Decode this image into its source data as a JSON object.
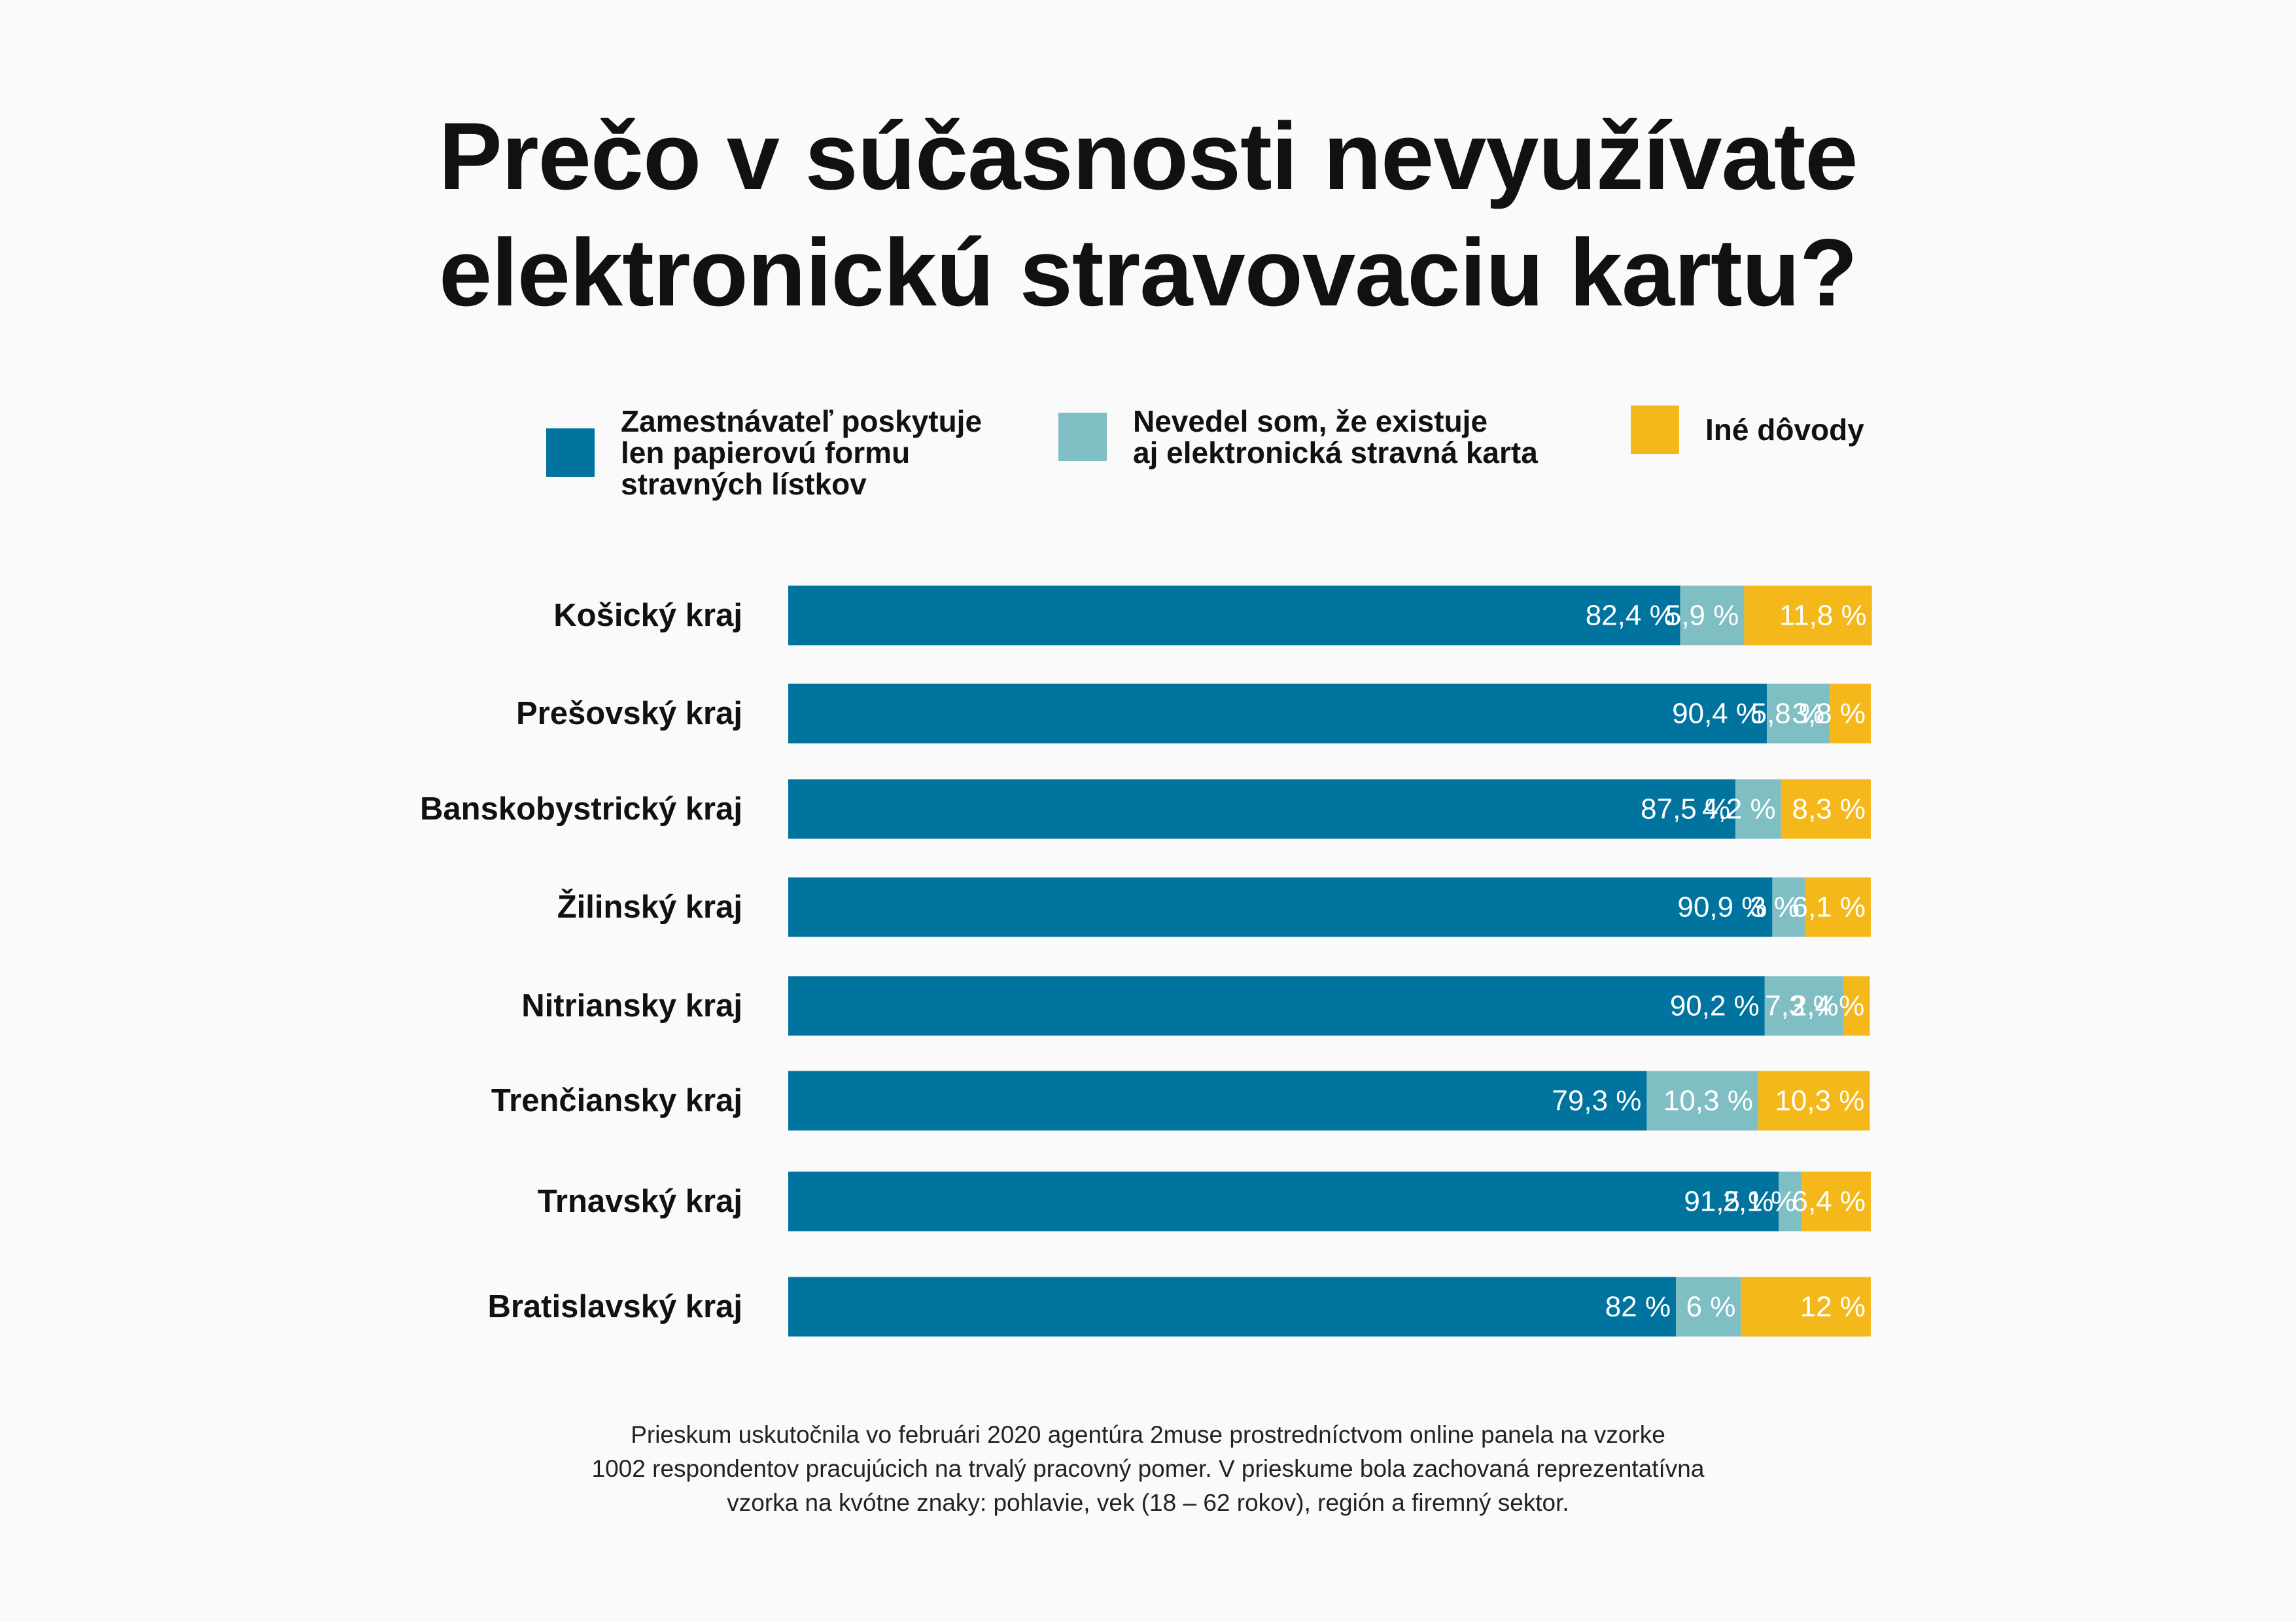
{
  "title_lines": [
    "Prečo v súčasnosti nevyužívate",
    "elektronickú stravovaciu kartu?"
  ],
  "legend": [
    {
      "label": "Zamestnávateľ poskytuje\nlen papierovú formu\nstravných lístkov",
      "color": "#00749e"
    },
    {
      "label": "Nevedel som, že existuje\naj elektronická stravná karta",
      "color": "#7fbfc4"
    },
    {
      "label": "Iné dôvody",
      "color": "#f5b81a"
    }
  ],
  "chart_data": {
    "type": "bar",
    "orientation": "horizontal",
    "stacked": true,
    "categories": [
      "Košický kraj",
      "Prešovský kraj",
      "Banskobystrický kraj",
      "Žilinský kraj",
      "Nitriansky kraj",
      "Trenčiansky kraj",
      "Trnavský kraj",
      "Bratislavský kraj"
    ],
    "series": [
      {
        "name": "Zamestnávateľ poskytuje len papierovú formu stravných lístkov",
        "color": "#00749e",
        "values": [
          82.4,
          90.4,
          87.5,
          90.9,
          90.2,
          79.3,
          91.5,
          82
        ],
        "labels": [
          "82,4 %",
          "90,4 %",
          "87,5 %",
          "90,9 %",
          "90,2 %",
          "79,3 %",
          "91,5 %",
          "82 %"
        ]
      },
      {
        "name": "Nevedel som, že existuje aj elektronická stravná karta",
        "color": "#7fbfc4",
        "values": [
          5.9,
          5.8,
          4.2,
          3,
          7.3,
          10.3,
          2.1,
          6
        ],
        "labels": [
          "5,9 %",
          "5,8 %",
          "4,2 %",
          "3 %",
          "7,3 %",
          "10,3 %",
          "2,1 %",
          "6 %"
        ]
      },
      {
        "name": "Iné dôvody",
        "color": "#f5b81a",
        "values": [
          11.8,
          3.8,
          8.3,
          6.1,
          2.4,
          10.3,
          6.4,
          12
        ],
        "labels": [
          "11,8 %",
          "3,8 %",
          "8,3 %",
          "6,1 %",
          "2,4 %",
          "10,3 %",
          "6,4 %",
          "12 %"
        ]
      }
    ],
    "xlim": [
      0,
      100
    ],
    "grid": false,
    "legend_position": "top"
  },
  "footnote_lines": [
    "Prieskum uskutočnila vo februári 2020 agentúra 2muse prostredníctvom online panela na vzorke",
    "1002 respondentov pracujúcich na trvalý pracovný pomer. V prieskume bola zachovaná reprezentatívna",
    "vzorka na kvótne znaky: pohlavie, vek (18 – 62 rokov), región a firemný sektor."
  ]
}
